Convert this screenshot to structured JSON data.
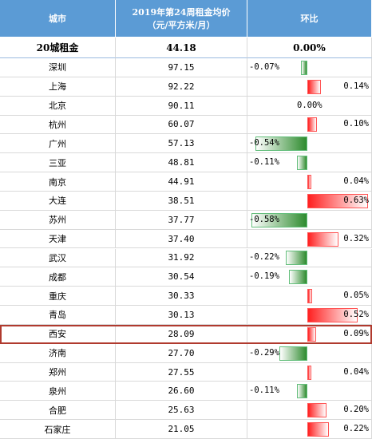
{
  "table": {
    "header": {
      "city": "城市",
      "price": "2019年第24周租金均价",
      "price_unit": "（元/平方米/月）",
      "change": "环比"
    },
    "summary": {
      "city": "20城租金",
      "price": "44.18",
      "change": "0.00%"
    },
    "cities": [
      "深圳",
      "上海",
      "北京",
      "杭州",
      "广州",
      "三亚",
      "南京",
      "大连",
      "苏州",
      "天津",
      "武汉",
      "成都",
      "重庆",
      "青岛",
      "西安",
      "济南",
      "郑州",
      "泉州",
      "合肥",
      "石家庄"
    ],
    "prices": [
      "97.15",
      "92.22",
      "90.11",
      "60.07",
      "57.13",
      "48.81",
      "44.91",
      "38.51",
      "37.77",
      "37.40",
      "31.92",
      "30.54",
      "30.33",
      "30.13",
      "28.09",
      "27.70",
      "27.55",
      "26.60",
      "25.63",
      "21.05"
    ],
    "changes": [
      -0.07,
      0.14,
      0,
      0.1,
      -0.54,
      -0.11,
      0.04,
      0.63,
      -0.58,
      0.32,
      -0.22,
      -0.19,
      0.05,
      0.52,
      0.09,
      -0.29,
      0.04,
      -0.11,
      0.2,
      0.22
    ],
    "change_labels": [
      "-0.07%",
      "0.14%",
      "0.00%",
      "0.10%",
      "-0.54%",
      "-0.11%",
      "0.04%",
      "0.63%",
      "-0.58%",
      "0.32%",
      "-0.22%",
      "-0.19%",
      "0.05%",
      "0.52%",
      "0.09%",
      "-0.29%",
      "0.04%",
      "-0.11%",
      "0.20%",
      "0.22%"
    ],
    "highlight_row": 14
  }
}
